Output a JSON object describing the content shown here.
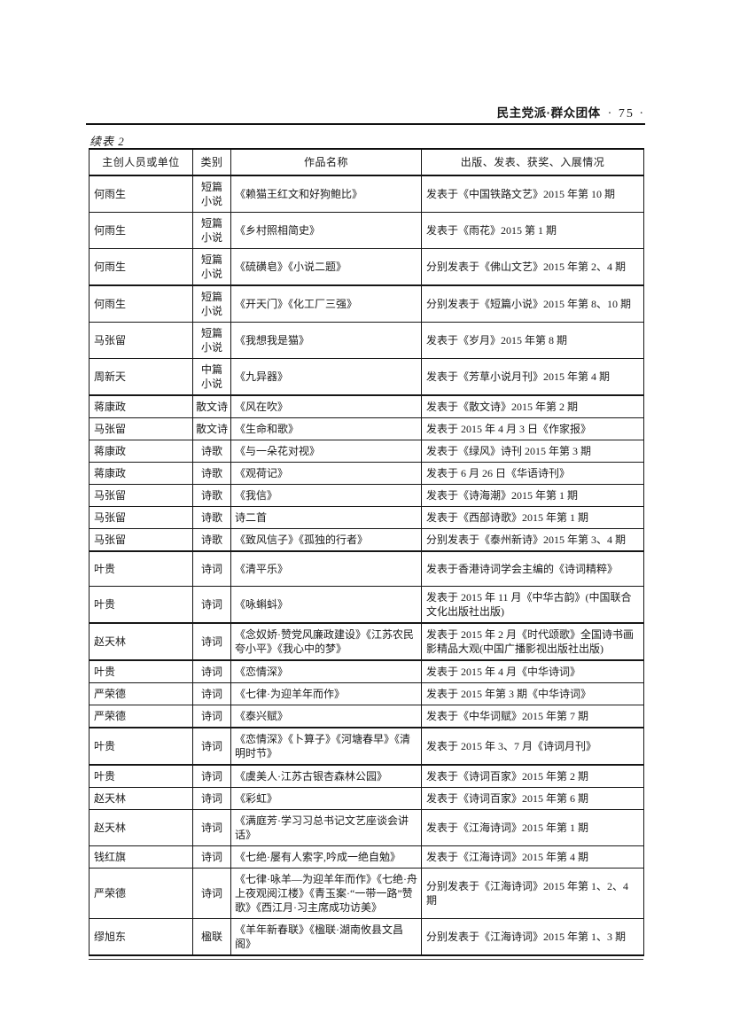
{
  "page": {
    "running_head": "民主党派·群众团体",
    "page_number_decorated": "· 75 ·",
    "table_caption": "续表 2"
  },
  "table": {
    "columns": [
      "主创人员或单位",
      "类别",
      "作品名称",
      "出版、发表、获奖、入展情况"
    ],
    "rows": [
      {
        "creator": "何雨生",
        "category": "短篇\n小说",
        "title": "《赖猫王红文和好狗鲍比》",
        "publication": "发表于《中国铁路文艺》2015 年第 10 期",
        "sep": "thin"
      },
      {
        "creator": "何雨生",
        "category": "短篇\n小说",
        "title": "《乡村照相简史》",
        "publication": "发表于《雨花》2015 第 1 期",
        "sep": "thin"
      },
      {
        "creator": "何雨生",
        "category": "短篇\n小说",
        "title": "《硫磺皂》《小说二题》",
        "publication": "分别发表于《佛山文艺》2015 年第 2、4 期",
        "sep": "thick"
      },
      {
        "creator": "何雨生",
        "category": "短篇\n小说",
        "title": "《开天门》《化工厂三强》",
        "publication": "分别发表于《短篇小说》2015 年第 8、10 期",
        "sep": "thin"
      },
      {
        "creator": "马张留",
        "category": "短篇\n小说",
        "title": "《我想我是猫》",
        "publication": "发表于《岁月》2015 年第 8 期",
        "sep": "thin"
      },
      {
        "creator": "周新天",
        "category": "中篇\n小说",
        "title": "《九异器》",
        "publication": "发表于《芳草小说月刊》2015 年第 4 期",
        "sep": "thick"
      },
      {
        "creator": "蒋康政",
        "category": "散文诗",
        "title": "《风在吹》",
        "publication": "发表于《散文诗》2015 年第 2 期",
        "sep": "thin"
      },
      {
        "creator": "马张留",
        "category": "散文诗",
        "title": "《生命和歌》",
        "publication": "发表于 2015 年 4 月 3 日《作家报》",
        "sep": "thin"
      },
      {
        "creator": "蒋康政",
        "category": "诗歌",
        "title": "《与一朵花对视》",
        "publication": "发表于《绿风》诗刊 2015 年第 3 期",
        "sep": "thin"
      },
      {
        "creator": "蒋康政",
        "category": "诗歌",
        "title": "《观荷记》",
        "publication": "发表于 6 月 26 日《华语诗刊》",
        "sep": "thin"
      },
      {
        "creator": "马张留",
        "category": "诗歌",
        "title": "《我信》",
        "publication": "发表于《诗海潮》2015 年第 1 期",
        "sep": "thin"
      },
      {
        "creator": "马张留",
        "category": "诗歌",
        "title": "诗二首",
        "publication": "发表于《西部诗歌》2015 年第 1 期",
        "sep": "thin"
      },
      {
        "creator": "马张留",
        "category": "诗歌",
        "title": "《致风信子》《孤独的行者》",
        "publication": "分别发表于《泰州新诗》2015 年第 3、4 期",
        "sep": "thick"
      },
      {
        "creator": "叶贵",
        "category": "诗词",
        "title": "《清平乐》",
        "publication": "发表于香港诗词学会主编的《诗词精粹》",
        "sep": "thin"
      },
      {
        "creator": "叶贵",
        "category": "诗词",
        "title": "《咏蝌蚪》",
        "publication": "发表于 2015 年 11 月《中华古韵》(中国联合文化出版社出版)",
        "sep": "thick"
      },
      {
        "creator": "赵天林",
        "category": "诗词",
        "title": "《念奴娇·赞党风廉政建设》《江苏农民夸小平》《我心中的梦》",
        "publication": "发表于 2015 年 2 月《时代颂歌》全国诗书画影精品大观(中国广播影视出版社出版)",
        "sep": "thick"
      },
      {
        "creator": "叶贵",
        "category": "诗词",
        "title": "《恋情深》",
        "publication": "发表于 2015 年 4 月《中华诗词》",
        "sep": "thin"
      },
      {
        "creator": "严荣德",
        "category": "诗词",
        "title": "《七律·为迎羊年而作》",
        "publication": "发表于 2015 年第 3 期《中华诗词》",
        "sep": "thin"
      },
      {
        "creator": "严荣德",
        "category": "诗词",
        "title": "《泰兴赋》",
        "publication": "发表于《中华词赋》2015 年第 7 期",
        "sep": "thick"
      },
      {
        "creator": "叶贵",
        "category": "诗词",
        "title": "《恋情深》《卜算子》《河塘春早》《清明时节》",
        "publication": "发表于 2015 年 3、7 月《诗词月刊》",
        "sep": "thick"
      },
      {
        "creator": "叶贵",
        "category": "诗词",
        "title": "《虞美人·江苏古银杏森林公园》",
        "publication": "发表于《诗词百家》2015 年第 2 期",
        "sep": "thin"
      },
      {
        "creator": "赵天林",
        "category": "诗词",
        "title": "《彩虹》",
        "publication": "发表于《诗词百家》2015 年第 6 期",
        "sep": "thin"
      },
      {
        "creator": "赵天林",
        "category": "诗词",
        "title": "《满庭芳·学习习总书记文艺座谈会讲话》",
        "publication": "发表于《江海诗词》2015 年第 1 期",
        "sep": "thin"
      },
      {
        "creator": "钱红旗",
        "category": "诗词",
        "title": "《七绝·屡有人索字,吟成一绝自勉》",
        "publication": "发表于《江海诗词》2015 年第 4 期",
        "sep": "thin"
      },
      {
        "creator": "严荣德",
        "category": "诗词",
        "title": "《七律·咏羊—为迎羊年而作》《七绝·舟上夜观阅江楼》《青玉案·“一带一路”赞歌》《西江月·习主席成功访美》",
        "publication": "分别发表于《江海诗词》2015 年第 1、2、4 期",
        "sep": "thin"
      },
      {
        "creator": "缪旭东",
        "category": "楹联",
        "title": "《羊年新春联》《楹联·湖南攸县文昌阁》",
        "publication": "分别发表于《江海诗词》2015 年第 1、3 期",
        "sep": "thin"
      }
    ]
  }
}
